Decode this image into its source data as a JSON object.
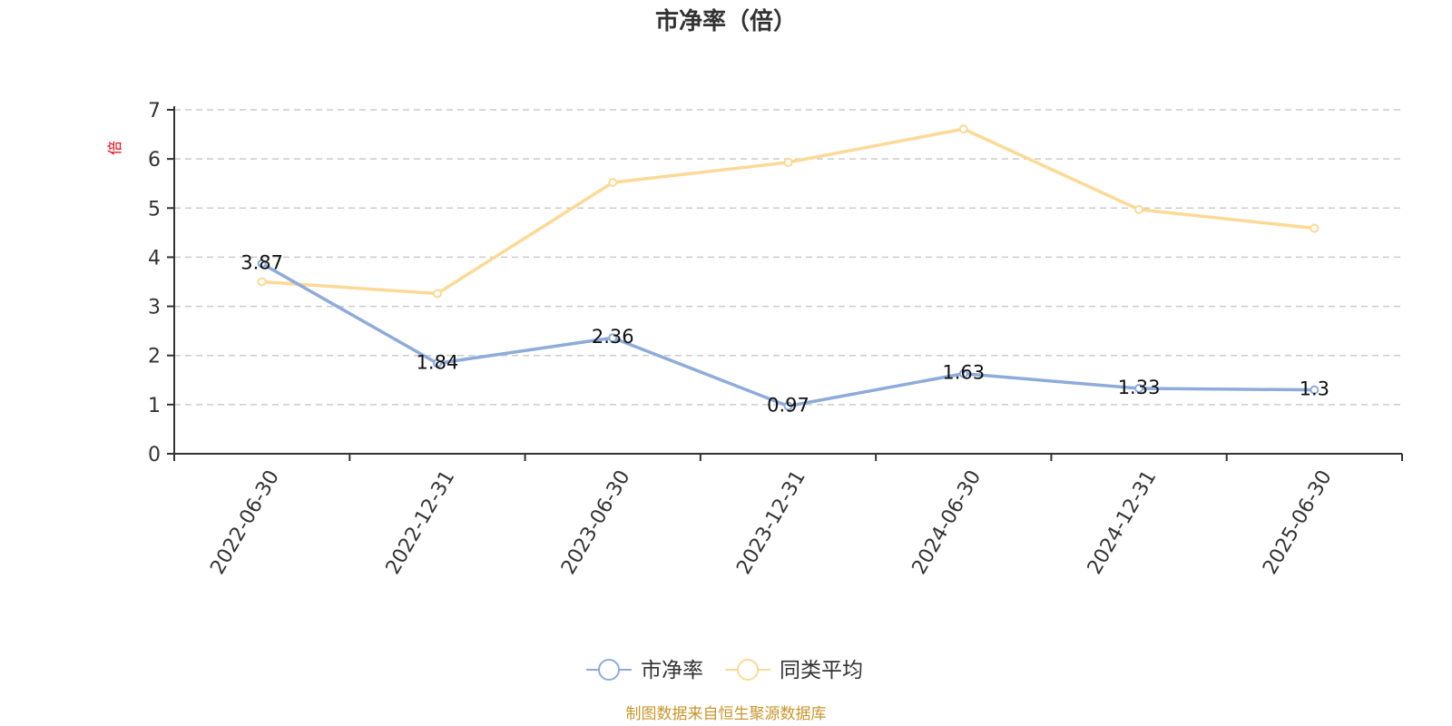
{
  "chart_data": {
    "type": "line",
    "title": "市净率（倍）",
    "ylabel": "倍",
    "ylim": [
      0,
      7
    ],
    "yticks": [
      0,
      1,
      2,
      3,
      4,
      5,
      6,
      7
    ],
    "categories": [
      "2022-06-30",
      "2022-12-31",
      "2023-06-30",
      "2023-12-31",
      "2024-06-30",
      "2024-12-31",
      "2025-06-30"
    ],
    "series": [
      {
        "name": "市净率",
        "color": "#8eabd9",
        "values": [
          3.87,
          1.84,
          2.36,
          0.97,
          1.63,
          1.33,
          1.3
        ],
        "labels": [
          "3.87",
          "1.84",
          "2.36",
          "0.97",
          "1.63",
          "1.33",
          "1.3"
        ]
      },
      {
        "name": "同类平均",
        "color": "#fcd995",
        "values": [
          3.5,
          3.26,
          5.52,
          5.93,
          6.61,
          4.97,
          4.59
        ]
      }
    ],
    "grid": "horizontal-dashed",
    "legend_position": "bottom-center"
  },
  "source_note": "制图数据来自恒生聚源数据库",
  "colors": {
    "unit": "#e60012",
    "source": "#c8962a",
    "axis": "#333333",
    "grid": "#cccccc"
  }
}
